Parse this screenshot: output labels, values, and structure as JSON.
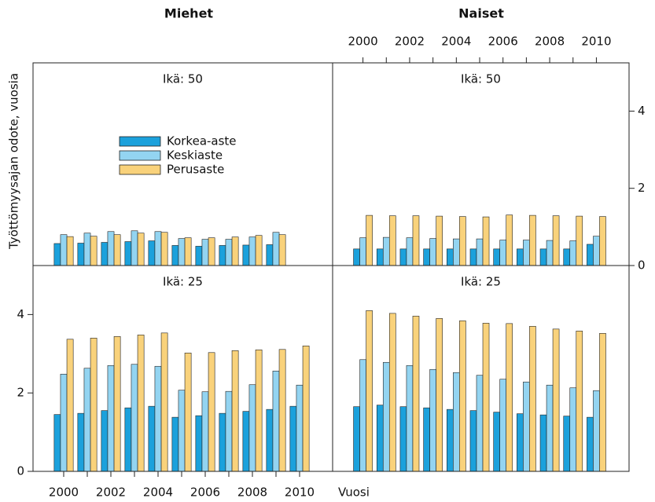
{
  "chart_data": {
    "type": "bar",
    "columns": [
      "Miehet",
      "Naiset"
    ],
    "ylabel": "Työttömyysajan odote, vuosia",
    "xlabel": "Vuosi",
    "x": [
      2000,
      2001,
      2002,
      2003,
      2004,
      2005,
      2006,
      2007,
      2008,
      2009,
      2010
    ],
    "xlim": [
      1998.7,
      2011.4
    ],
    "xticks": [
      2000,
      2002,
      2004,
      2006,
      2008,
      2010
    ],
    "minor_xticks": [
      2001,
      2003,
      2005,
      2007,
      2009
    ],
    "ylim": [
      0,
      5.25
    ],
    "yticks": [
      0,
      2,
      4
    ],
    "legend": "upper left",
    "series": [
      {
        "name": "Korkea-aste",
        "color": "#1ba1dc"
      },
      {
        "name": "Keskiaste",
        "color": "#93d4f1"
      },
      {
        "name": "Perusaste",
        "color": "#f9d27b"
      }
    ],
    "panels": [
      {
        "title": "Ikä: 50",
        "values": [
          [
            0.57,
            0.58,
            0.6,
            0.62,
            0.64,
            0.52,
            0.5,
            0.52,
            0.53,
            0.54,
            null
          ],
          [
            0.8,
            0.84,
            0.88,
            0.9,
            0.88,
            0.7,
            0.68,
            0.68,
            0.74,
            0.86,
            null
          ],
          [
            0.75,
            0.76,
            0.8,
            0.84,
            0.86,
            0.72,
            0.72,
            0.74,
            0.78,
            0.8,
            null
          ]
        ]
      },
      {
        "title": "Ikä: 50",
        "values": [
          [
            0.43,
            0.43,
            0.43,
            0.43,
            0.43,
            0.43,
            0.43,
            0.43,
            0.43,
            0.43,
            0.55
          ],
          [
            0.72,
            0.73,
            0.72,
            0.7,
            0.69,
            0.69,
            0.66,
            0.66,
            0.65,
            0.64,
            0.76
          ],
          [
            1.3,
            1.29,
            1.29,
            1.28,
            1.27,
            1.26,
            1.31,
            1.3,
            1.29,
            1.28,
            1.27
          ]
        ]
      },
      {
        "title": "Ikä: 25",
        "values": [
          [
            1.45,
            1.48,
            1.55,
            1.62,
            1.66,
            1.38,
            1.42,
            1.48,
            1.53,
            1.58,
            1.66
          ],
          [
            2.48,
            2.63,
            2.7,
            2.73,
            2.68,
            2.07,
            2.03,
            2.04,
            2.21,
            2.56,
            2.2
          ],
          [
            3.37,
            3.4,
            3.44,
            3.48,
            3.53,
            3.02,
            3.03,
            3.08,
            3.1,
            3.11,
            3.2
          ]
        ]
      },
      {
        "title": "Ikä: 25",
        "values": [
          [
            1.65,
            1.69,
            1.65,
            1.62,
            1.58,
            1.55,
            1.51,
            1.47,
            1.44,
            1.41,
            1.38
          ],
          [
            2.85,
            2.78,
            2.7,
            2.6,
            2.52,
            2.45,
            2.35,
            2.28,
            2.2,
            2.13,
            2.06
          ],
          [
            4.1,
            4.03,
            3.96,
            3.9,
            3.84,
            3.78,
            3.77,
            3.7,
            3.63,
            3.58,
            3.52
          ]
        ]
      }
    ]
  }
}
